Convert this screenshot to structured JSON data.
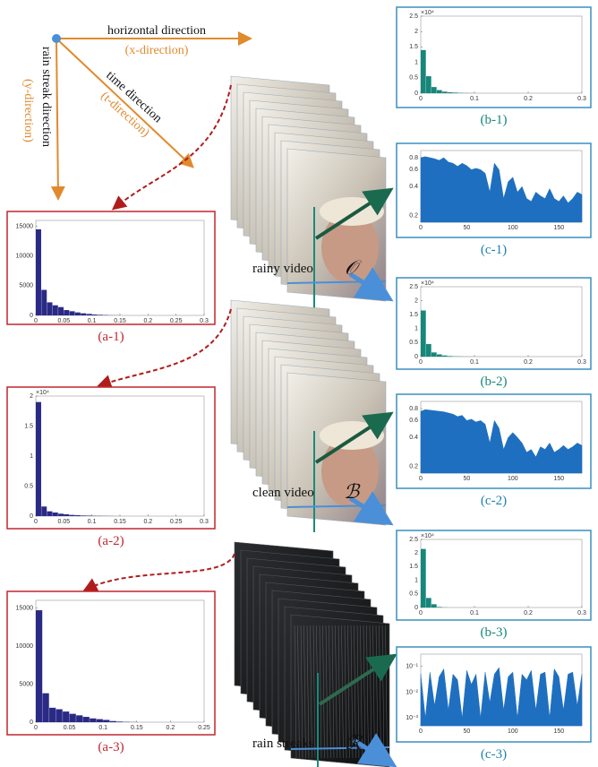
{
  "axes_diagram": {
    "x_text": "horizontal direction",
    "x_sub": "(x-direction)",
    "t_text": "time direction",
    "t_sub": "(t-direction)",
    "y_text": "rain streak direction",
    "y_sub": "(y-direction)"
  },
  "videos": [
    {
      "caption": "rainy video",
      "symbol": "𝒪"
    },
    {
      "caption": "clean video",
      "symbol": "ℬ"
    },
    {
      "caption": "rain streaks",
      "symbol": "ℛ"
    }
  ],
  "panels": [
    {
      "label": "(a-1)",
      "type": "histogram",
      "color": "#2a2a86",
      "xlim": [
        0,
        0.3
      ],
      "ylim": [
        0,
        16000
      ],
      "xticks": [
        0,
        0.05,
        0.1,
        0.15,
        0.2,
        0.25,
        0.3
      ],
      "yticks": [
        0,
        5000,
        10000,
        15000
      ],
      "bins": [
        0,
        0.01,
        0.02,
        0.03,
        0.04,
        0.05,
        0.06,
        0.07,
        0.08,
        0.09,
        0.1,
        0.11,
        0.12,
        0.13,
        0.14,
        0.15
      ],
      "values": [
        14500,
        4300,
        2200,
        1700,
        1400,
        900,
        700,
        500,
        350,
        250,
        150,
        100,
        60,
        30,
        20
      ]
    },
    {
      "label": "(a-2)",
      "type": "histogram",
      "color": "#2a2a86",
      "xlim": [
        0,
        0.3
      ],
      "ylim": [
        0,
        2
      ],
      "xticks": [
        0,
        0.05,
        0.1,
        0.15,
        0.2,
        0.25,
        0.3
      ],
      "yticks": [
        0,
        0.5,
        1,
        1.5,
        2
      ],
      "y_multiplier": "×10⁴",
      "bins": [
        0,
        0.01,
        0.02,
        0.03,
        0.04,
        0.05,
        0.06,
        0.07,
        0.08,
        0.09,
        0.1,
        0.11,
        0.12,
        0.13,
        0.14,
        0.15
      ],
      "values": [
        1.9,
        0.16,
        0.08,
        0.06,
        0.04,
        0.03,
        0.02,
        0.015,
        0.01,
        0.008,
        0.005,
        0.004,
        0.003,
        0.002,
        0.001
      ]
    },
    {
      "label": "(a-3)",
      "type": "histogram",
      "color": "#2a2a86",
      "xlim": [
        0,
        0.25
      ],
      "ylim": [
        0,
        16000
      ],
      "xticks": [
        0,
        0.05,
        0.1,
        0.15,
        0.2,
        0.25
      ],
      "yticks": [
        0,
        5000,
        10000,
        15000
      ],
      "bins": [
        0,
        0.01,
        0.02,
        0.03,
        0.04,
        0.05,
        0.06,
        0.07,
        0.08,
        0.09,
        0.1,
        0.11,
        0.12,
        0.13,
        0.14,
        0.15
      ],
      "values": [
        14700,
        3800,
        1900,
        1700,
        1400,
        1100,
        900,
        700,
        500,
        400,
        300,
        150,
        80,
        40,
        20
      ]
    },
    {
      "label": "(b-1)",
      "type": "histogram",
      "color": "#16877a",
      "xlim": [
        0,
        0.3
      ],
      "ylim": [
        0,
        2.5
      ],
      "xticks": [
        0,
        0.1,
        0.2,
        0.3
      ],
      "yticks": [
        0,
        0.5,
        1,
        1.5,
        2,
        2.5
      ],
      "y_multiplier": "×10⁴",
      "bins": [
        0,
        0.01,
        0.02,
        0.03,
        0.04,
        0.05,
        0.06,
        0.07,
        0.08,
        0.09,
        0.1
      ],
      "values": [
        1.4,
        0.55,
        0.2,
        0.1,
        0.05,
        0.03,
        0.02,
        0.01,
        0.005,
        0.003
      ]
    },
    {
      "label": "(c-1)",
      "type": "area",
      "color": "#1f6fc0",
      "log_y": true,
      "xlim": [
        0,
        175
      ],
      "ylim": [
        0.17,
        0.95
      ],
      "xticks": [
        0,
        50,
        100,
        150
      ],
      "yticks": [
        0.2,
        0.4,
        0.6,
        0.8
      ],
      "x": [
        0,
        5,
        10,
        15,
        20,
        25,
        30,
        35,
        40,
        45,
        50,
        55,
        60,
        65,
        70,
        75,
        80,
        85,
        90,
        95,
        100,
        105,
        110,
        115,
        120,
        125,
        130,
        135,
        140,
        145,
        150,
        155,
        160,
        165,
        170,
        175
      ],
      "values": [
        0.8,
        0.82,
        0.8,
        0.78,
        0.75,
        0.8,
        0.72,
        0.7,
        0.65,
        0.7,
        0.66,
        0.6,
        0.62,
        0.6,
        0.55,
        0.35,
        0.7,
        0.6,
        0.3,
        0.45,
        0.5,
        0.35,
        0.4,
        0.3,
        0.28,
        0.35,
        0.32,
        0.3,
        0.38,
        0.3,
        0.28,
        0.32,
        0.27,
        0.3,
        0.35,
        0.33
      ]
    },
    {
      "label": "(b-2)",
      "type": "histogram",
      "color": "#16877a",
      "xlim": [
        0,
        0.3
      ],
      "ylim": [
        0,
        2.5
      ],
      "xticks": [
        0,
        0.1,
        0.2,
        0.3
      ],
      "yticks": [
        0,
        0.5,
        1,
        1.5,
        2,
        2.5
      ],
      "y_multiplier": "×10⁴",
      "bins": [
        0,
        0.01,
        0.02,
        0.03,
        0.04,
        0.05,
        0.06,
        0.07,
        0.08,
        0.09,
        0.1
      ],
      "values": [
        1.65,
        0.45,
        0.15,
        0.08,
        0.04,
        0.02,
        0.01,
        0.006,
        0.003,
        0.002
      ]
    },
    {
      "label": "(c-2)",
      "type": "area",
      "color": "#1f6fc0",
      "log_y": true,
      "xlim": [
        0,
        175
      ],
      "ylim": [
        0.17,
        0.95
      ],
      "xticks": [
        0,
        50,
        100,
        150
      ],
      "yticks": [
        0.2,
        0.4,
        0.6,
        0.8
      ],
      "x": [
        0,
        5,
        10,
        15,
        20,
        25,
        30,
        35,
        40,
        45,
        50,
        55,
        60,
        65,
        70,
        75,
        80,
        85,
        90,
        95,
        100,
        105,
        110,
        115,
        120,
        125,
        130,
        135,
        140,
        145,
        150,
        155,
        160,
        165,
        170,
        175
      ],
      "values": [
        0.75,
        0.78,
        0.77,
        0.76,
        0.75,
        0.74,
        0.72,
        0.7,
        0.66,
        0.68,
        0.6,
        0.62,
        0.58,
        0.6,
        0.55,
        0.35,
        0.6,
        0.5,
        0.3,
        0.4,
        0.45,
        0.4,
        0.35,
        0.28,
        0.3,
        0.25,
        0.32,
        0.3,
        0.35,
        0.28,
        0.3,
        0.33,
        0.3,
        0.32,
        0.35,
        0.33
      ]
    },
    {
      "label": "(b-3)",
      "type": "histogram",
      "color": "#16877a",
      "xlim": [
        0,
        0.3
      ],
      "ylim": [
        0,
        2.5
      ],
      "xticks": [
        0,
        0.1,
        0.2,
        0.3
      ],
      "yticks": [
        0,
        0.5,
        1,
        1.5,
        2,
        2.5
      ],
      "y_multiplier": "×10⁴",
      "bins": [
        0,
        0.01,
        0.02,
        0.03,
        0.04,
        0.05
      ],
      "values": [
        2.15,
        0.35,
        0.12,
        0.02,
        0.005
      ]
    },
    {
      "label": "(c-3)",
      "type": "area",
      "color": "#1f6fc0",
      "log_y": true,
      "xlim": [
        0,
        175
      ],
      "ylim": [
        0.0005,
        0.3
      ],
      "xticks": [
        0,
        50,
        100,
        150
      ],
      "yticks": [
        {
          "value": 0.001,
          "label": "10⁻³"
        },
        {
          "value": 0.01,
          "label": "10⁻²"
        },
        {
          "value": 0.1,
          "label": "10⁻¹"
        }
      ],
      "x": [
        0,
        5,
        10,
        15,
        20,
        25,
        30,
        35,
        40,
        45,
        50,
        55,
        60,
        65,
        70,
        75,
        80,
        85,
        90,
        95,
        100,
        105,
        110,
        115,
        120,
        125,
        130,
        135,
        140,
        145,
        150,
        155,
        160,
        165,
        170,
        175
      ],
      "values": [
        0.05,
        0.001,
        0.06,
        0.003,
        0.04,
        0.08,
        0.002,
        0.05,
        0.03,
        0.001,
        0.07,
        0.02,
        0.05,
        0.001,
        0.06,
        0.004,
        0.05,
        0.09,
        0.002,
        0.04,
        0.06,
        0.001,
        0.05,
        0.03,
        0.07,
        0.002,
        0.05,
        0.06,
        0.001,
        0.08,
        0.04,
        0.002,
        0.05,
        0.06,
        0.003,
        0.05
      ]
    }
  ]
}
